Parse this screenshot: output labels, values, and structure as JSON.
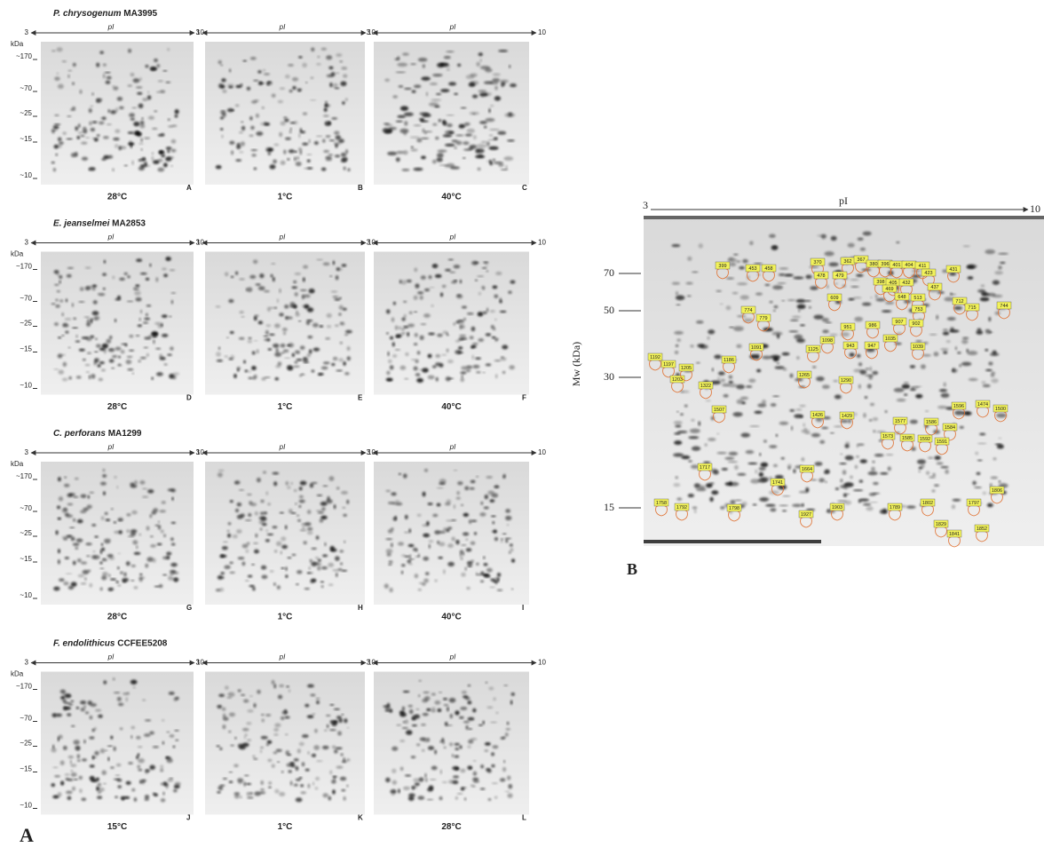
{
  "panel_a": {
    "label": "A",
    "axis": {
      "start": "3",
      "name": "pI",
      "end": "10",
      "unit": "kDa",
      "mw_ticks": [
        "~170",
        "~70",
        "~25",
        "~15",
        "~10"
      ]
    },
    "rows": [
      {
        "species": "P. chrysogenum",
        "strain": "MA3995",
        "gels": [
          {
            "temperature": "28°C",
            "letter": "A"
          },
          {
            "temperature": "1°C",
            "letter": "B"
          },
          {
            "temperature": "40°C",
            "letter": "C"
          }
        ]
      },
      {
        "species": "E. jeanselmei",
        "strain": "MA2853",
        "gels": [
          {
            "temperature": "28°C",
            "letter": "D"
          },
          {
            "temperature": "1°C",
            "letter": "E"
          },
          {
            "temperature": "40°C",
            "letter": "F"
          }
        ]
      },
      {
        "species": "C. perforans",
        "strain": "MA1299",
        "gels": [
          {
            "temperature": "28°C",
            "letter": "G"
          },
          {
            "temperature": "1°C",
            "letter": "H"
          },
          {
            "temperature": "40°C",
            "letter": "I"
          }
        ]
      },
      {
        "species": "F. endolithicus",
        "strain": "CCFEE5208",
        "gels": [
          {
            "temperature": "15°C",
            "letter": "J"
          },
          {
            "temperature": "1°C",
            "letter": "K"
          },
          {
            "temperature": "28°C",
            "letter": "L"
          }
        ]
      }
    ]
  },
  "panel_b": {
    "label": "B",
    "axis_start": "3",
    "axis_name": "pI",
    "axis_end": "10",
    "y_axis_title": "Mw (kDa)",
    "mw_ticks": [
      "70",
      "50",
      "30",
      "15"
    ],
    "spots": [
      "399",
      "453",
      "458",
      "370",
      "362",
      "367",
      "380",
      "396",
      "401",
      "404",
      "411",
      "431",
      "478",
      "479",
      "423",
      "398",
      "405",
      "432",
      "437",
      "469",
      "648",
      "513",
      "609",
      "712",
      "715",
      "744",
      "774",
      "779",
      "753",
      "907",
      "902",
      "951",
      "986",
      "1098",
      "1035",
      "943",
      "947",
      "1091",
      "1125",
      "1039",
      "1192",
      "1197",
      "1203",
      "1205",
      "1186",
      "1322",
      "1265",
      "1290",
      "1507",
      "1426",
      "1429",
      "1577",
      "1586",
      "1584",
      "1573",
      "1585",
      "1592",
      "1591",
      "1596",
      "1474",
      "1500",
      "1717",
      "1664",
      "1741",
      "1758",
      "1792",
      "1798",
      "1927",
      "1903",
      "1789",
      "1802",
      "1797",
      "1829",
      "1841",
      "1852",
      "1806"
    ]
  }
}
